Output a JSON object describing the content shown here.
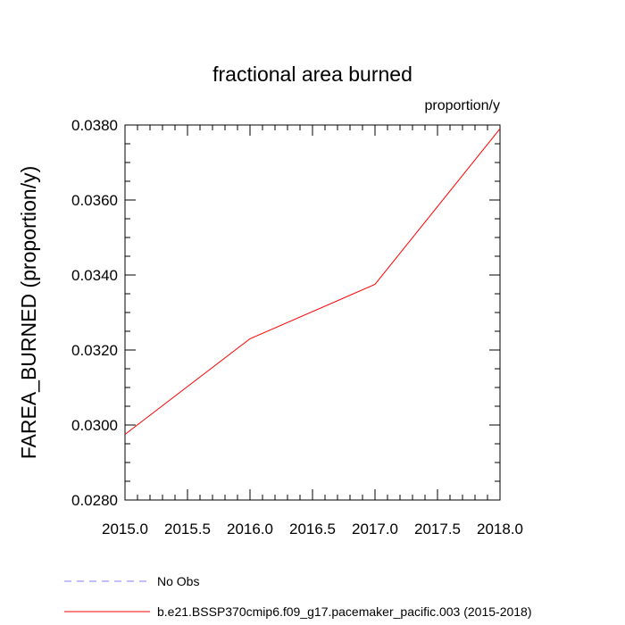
{
  "chart_data": {
    "type": "line",
    "title": "fractional area burned",
    "units_label": "proportion/y",
    "xlabel": "",
    "ylabel": "FAREA_BURNED  (proportion/y)",
    "xlim": [
      2015.0,
      2018.0
    ],
    "ylim": [
      0.028,
      0.038
    ],
    "x_ticks": [
      "2015.0",
      "2015.5",
      "2016.0",
      "2016.5",
      "2017.0",
      "2017.5",
      "2018.0"
    ],
    "y_ticks": [
      "0.0280",
      "0.0300",
      "0.0320",
      "0.0340",
      "0.0360",
      "0.0380"
    ],
    "grid": false,
    "series": [
      {
        "name": "b.e21.BSSP370cmip6.f09_g17.pacemaker_pacific.003 (2015-2018)",
        "color": "#ff0000",
        "dash": "solid",
        "x": [
          2015.0,
          2016.0,
          2017.0,
          2018.0
        ],
        "y": [
          0.02975,
          0.0323,
          0.03375,
          0.0379
        ]
      }
    ],
    "legend": [
      {
        "label": "No Obs",
        "color": "#8080ff",
        "dash": "dashed"
      },
      {
        "label": "b.e21.BSSP370cmip6.f09_g17.pacemaker_pacific.003 (2015-2018)",
        "color": "#ff0000",
        "dash": "solid"
      }
    ],
    "legend_position": "bottom"
  }
}
